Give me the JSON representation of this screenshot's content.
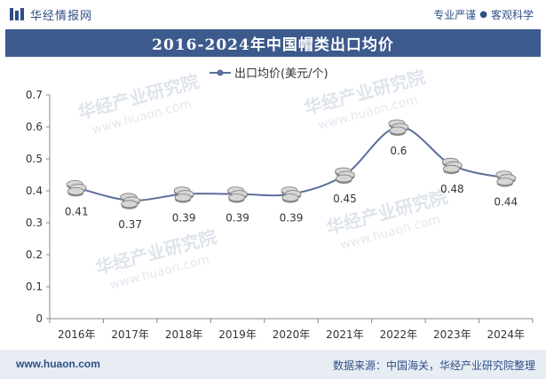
{
  "header": {
    "brand": "华经情报网",
    "tagline_left": "专业严谨",
    "tagline_dot": "●",
    "tagline_right": "客观科学"
  },
  "footer": {
    "website": "www.huaon.com",
    "source": "数据来源：中国海关，华经产业研究院整理"
  },
  "watermark": {
    "text": "华经产业研究院",
    "url": "www.huaon.com"
  },
  "colors": {
    "line": "#5b6e9c",
    "title_bar": "#3c5a8c",
    "brand": "#2f4f86"
  },
  "chart_data": {
    "type": "line",
    "title": "2016-2024年中国帽类出口均价",
    "categories": [
      "2016年",
      "2017年",
      "2018年",
      "2019年",
      "2020年",
      "2021年",
      "2022年",
      "2023年",
      "2024年"
    ],
    "series": [
      {
        "name": "出口均价(美元/个)",
        "values": [
          0.41,
          0.37,
          0.39,
          0.39,
          0.39,
          0.45,
          0.6,
          0.48,
          0.44
        ]
      }
    ],
    "data_labels": [
      "0.41",
      "0.37",
      "0.39",
      "0.39",
      "0.39",
      "0.45",
      "0.6",
      "0.48",
      "0.44"
    ],
    "yticks": [
      "0",
      "0.1",
      "0.2",
      "0.3",
      "0.4",
      "0.5",
      "0.6",
      "0.7"
    ],
    "ylim": [
      0,
      0.7
    ],
    "legend_position": "top",
    "grid": false
  }
}
